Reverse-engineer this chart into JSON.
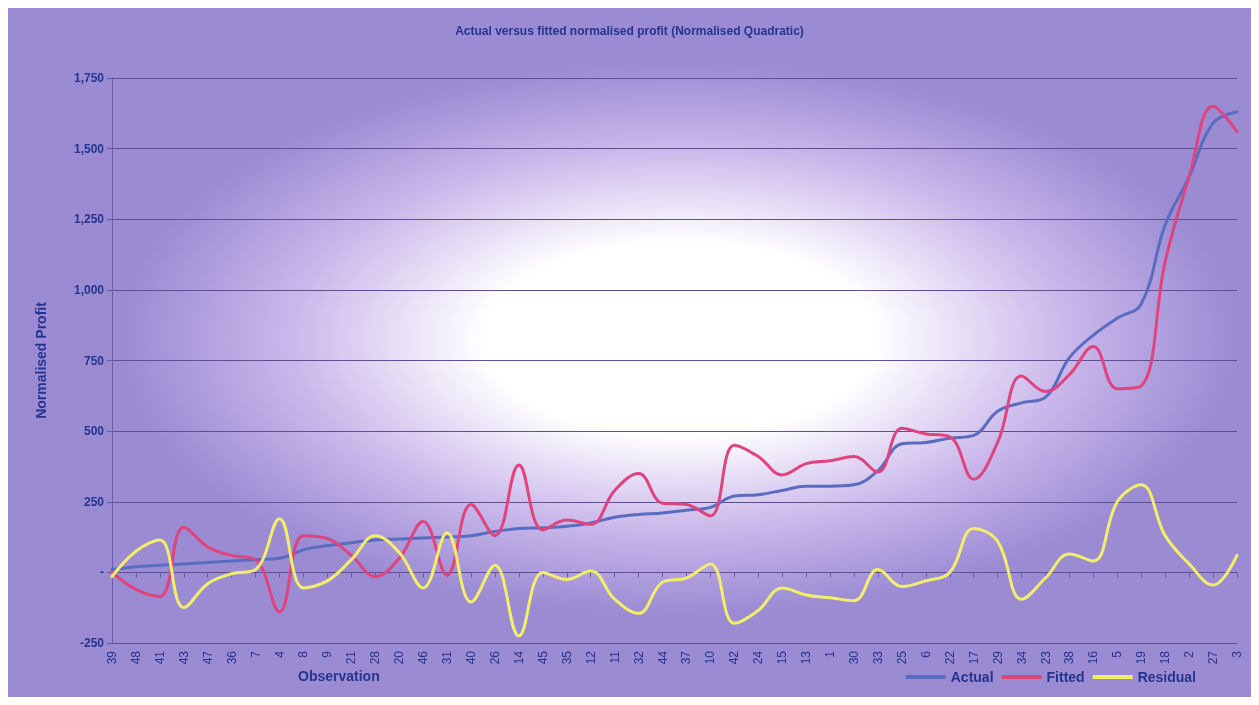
{
  "chart_data": {
    "type": "line",
    "title": "Actual versus fitted normalised profit (Normalised Quadratic)",
    "xlabel": "Observation",
    "ylabel": "Normalised Profit",
    "categories": [
      "39",
      "48",
      "41",
      "43",
      "47",
      "36",
      "7",
      "4",
      "8",
      "9",
      "21",
      "28",
      "20",
      "46",
      "31",
      "40",
      "26",
      "14",
      "45",
      "35",
      "12",
      "11",
      "32",
      "44",
      "37",
      "10",
      "42",
      "24",
      "15",
      "13",
      "1",
      "30",
      "33",
      "25",
      "6",
      "22",
      "17",
      "29",
      "34",
      "23",
      "38",
      "16",
      "5",
      "19",
      "18",
      "2",
      "27",
      "3"
    ],
    "series": [
      {
        "name": "Actual",
        "color": "#5a6cc0",
        "values": [
          10,
          20,
          25,
          30,
          35,
          40,
          45,
          50,
          80,
          95,
          105,
          115,
          118,
          122,
          125,
          130,
          145,
          155,
          158,
          163,
          175,
          195,
          205,
          210,
          220,
          230,
          270,
          275,
          290,
          305,
          305,
          310,
          360,
          455,
          460,
          475,
          485,
          570,
          600,
          620,
          760,
          840,
          900,
          950,
          1230,
          1400,
          1590,
          1630
        ]
      },
      {
        "name": "Fitted",
        "color": "#e0447e",
        "values": [
          0,
          -60,
          -85,
          160,
          90,
          60,
          45,
          -140,
          130,
          120,
          60,
          -15,
          50,
          180,
          -10,
          240,
          130,
          380,
          150,
          185,
          170,
          290,
          350,
          245,
          240,
          200,
          450,
          410,
          345,
          385,
          395,
          410,
          355,
          510,
          490,
          480,
          330,
          460,
          695,
          640,
          700,
          800,
          650,
          660,
          1100,
          1400,
          1650,
          1560
        ]
      },
      {
        "name": "Residual",
        "color": "#f2ee6a",
        "values": [
          -15,
          75,
          115,
          -125,
          -40,
          -5,
          10,
          190,
          -55,
          -30,
          45,
          130,
          70,
          -55,
          140,
          -105,
          25,
          -225,
          0,
          -25,
          5,
          -95,
          -145,
          -35,
          -20,
          30,
          -180,
          -135,
          -55,
          -80,
          -90,
          -100,
          10,
          -50,
          -30,
          0,
          155,
          110,
          -95,
          -20,
          65,
          40,
          250,
          310,
          130,
          30,
          -45,
          60
        ]
      }
    ],
    "ylim": [
      -250,
      1750
    ],
    "yticks": [
      -250,
      {
        "value": 0,
        "label": "-"
      },
      {
        "value": 250,
        "label": "250"
      },
      {
        "value": 500,
        "label": "500"
      },
      {
        "value": 750,
        "label": "750"
      },
      {
        "value": 1000,
        "label": "1,000"
      },
      {
        "value": 1250,
        "label": "1,250"
      },
      {
        "value": 1500,
        "label": "1,500"
      },
      {
        "value": 1750,
        "label": "1,750"
      }
    ],
    "grid": "y",
    "legend": "bottom right",
    "marker": "none",
    "line_style": "solid"
  }
}
